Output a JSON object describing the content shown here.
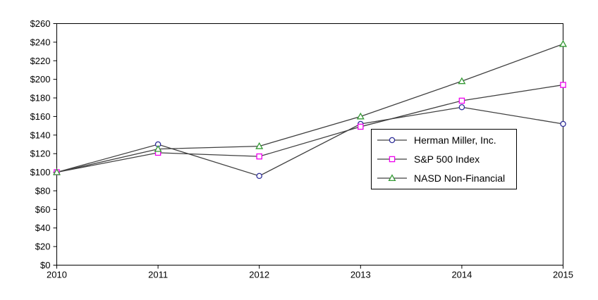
{
  "page": {
    "background_color": "#ffffff"
  },
  "chart_data": {
    "type": "line",
    "title": "",
    "xlabel": "",
    "ylabel": "",
    "x_categories": [
      "2010",
      "2011",
      "2012",
      "2013",
      "2014",
      "2015"
    ],
    "series": [
      {
        "name": "Herman Miller, Inc.",
        "marker": "circle",
        "marker_color": "#2E2E99",
        "values": [
          100,
          130,
          96,
          152,
          170,
          152
        ]
      },
      {
        "name": "S&P 500 Index",
        "marker": "square",
        "marker_color": "#EE00EE",
        "values": [
          100,
          121,
          117,
          149,
          177,
          194
        ]
      },
      {
        "name": "NASD Non-Financial",
        "marker": "triangle",
        "marker_color": "#339933",
        "values": [
          100,
          125,
          128,
          160,
          198,
          238
        ]
      }
    ],
    "line_color": "#404040",
    "axis_color": "#000000",
    "ylim": [
      0,
      260
    ],
    "ytick_step": 20,
    "ytick_prefix": "$",
    "grid": false,
    "legend_position": "inside-right"
  }
}
